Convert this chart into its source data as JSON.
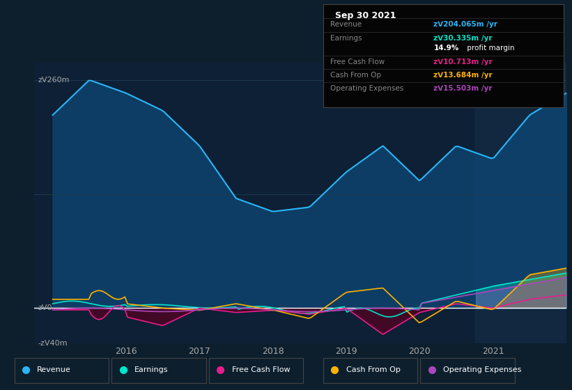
{
  "bg_color": "#0d1f2d",
  "chart_bg": "#0d2035",
  "highlight_bg": "#112840",
  "grid_color": "#1e3a52",
  "zero_line_color": "#ffffff",
  "ylim": [
    -40,
    280
  ],
  "xlim_start": 2014.75,
  "xlim_end": 2022.0,
  "highlight_start": 2020.75,
  "xticks": [
    2016,
    2017,
    2018,
    2019,
    2020,
    2021
  ],
  "series": {
    "revenue": {
      "color": "#29b6f6",
      "fill_color": "#0d4a7a",
      "label": "Revenue"
    },
    "earnings": {
      "color": "#00e5cc",
      "label": "Earnings"
    },
    "free_cash_flow": {
      "color": "#e91e8c",
      "label": "Free Cash Flow"
    },
    "cash_from_op": {
      "color": "#ffb300",
      "label": "Cash From Op"
    },
    "op_expenses": {
      "color": "#ab47bc",
      "label": "Operating Expenses"
    }
  },
  "infobox": {
    "title": "Sep 30 2021",
    "bg_color": "#050505",
    "border_color": "#444444",
    "row_labels": [
      "Revenue",
      "Earnings",
      "",
      "Free Cash Flow",
      "Cash From Op",
      "Operating Expenses"
    ],
    "row_values": [
      "zᐯ204.065m /yr",
      "zᐯ30.335m /yr",
      "14.9% profit margin",
      "zᐯ10.713m /yr",
      "zᐯ13.684m /yr",
      "zᐯ15.503m /yr"
    ],
    "row_colors": [
      "#29b6f6",
      "#00e5cc",
      "#ffffff",
      "#e91e8c",
      "#ffb300",
      "#ab47bc"
    ]
  },
  "legend": [
    {
      "label": "Revenue",
      "color": "#29b6f6"
    },
    {
      "label": "Earnings",
      "color": "#00e5cc"
    },
    {
      "label": "Free Cash Flow",
      "color": "#e91e8c"
    },
    {
      "label": "Cash From Op",
      "color": "#ffb300"
    },
    {
      "label": "Operating Expenses",
      "color": "#ab47bc"
    }
  ]
}
